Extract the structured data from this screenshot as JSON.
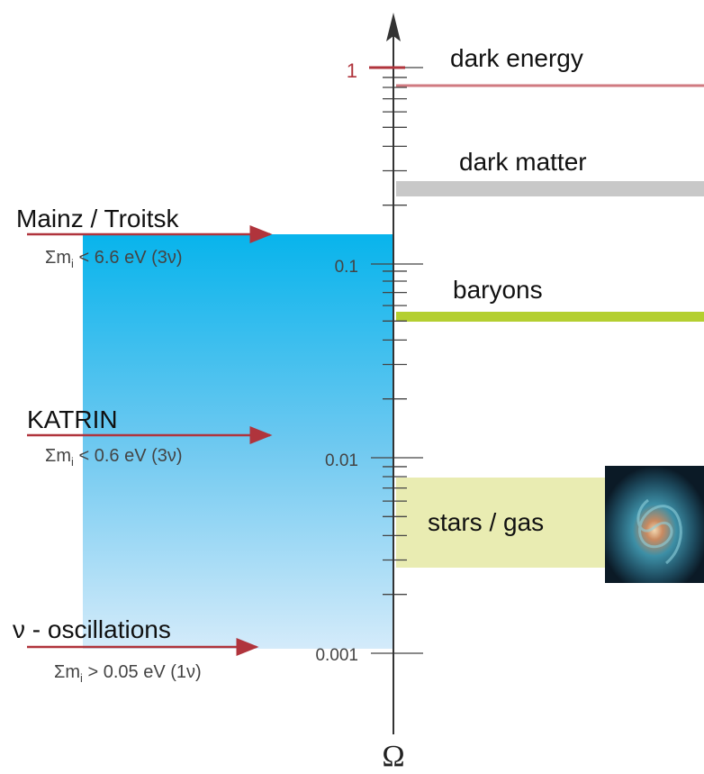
{
  "axis": {
    "symbol": "Ω",
    "ticks": [
      "1",
      "0.1",
      "0.01",
      "0.001"
    ]
  },
  "components": [
    {
      "label": "dark energy"
    },
    {
      "label": "dark matter"
    },
    {
      "label": "baryons"
    },
    {
      "label": "stars / gas"
    }
  ],
  "limits": [
    {
      "label": "Mainz / Troitsk",
      "bound": [
        "Σm",
        "i",
        " < 6.6 eV (3ν)"
      ]
    },
    {
      "label": "KATRIN",
      "bound": [
        "Σm",
        "i",
        " < 0.6 eV (3ν)"
      ]
    },
    {
      "label": "ν - oscillations",
      "bound": [
        "Σm",
        "i",
        " > 0.05 eV (1ν)"
      ]
    }
  ]
}
